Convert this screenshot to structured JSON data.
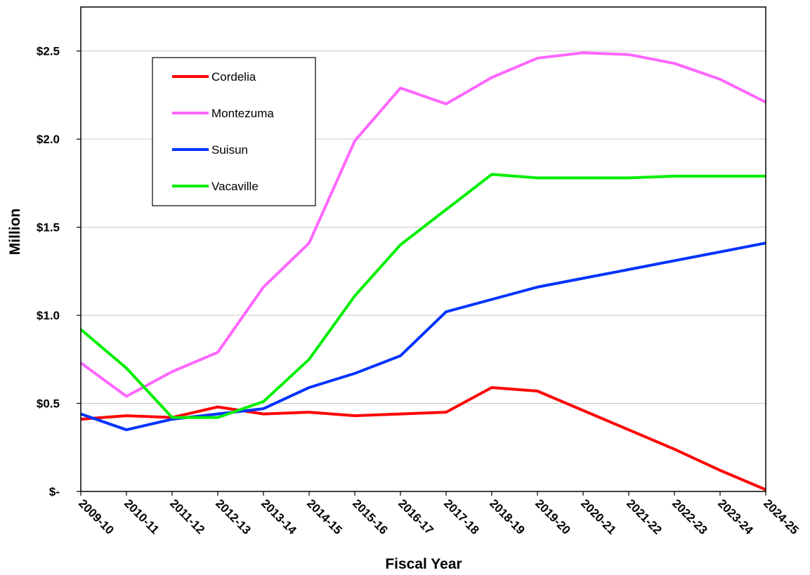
{
  "chart_data": {
    "type": "line",
    "title": "",
    "xlabel": "Fiscal Year",
    "ylabel": "Million",
    "categories": [
      "2009-10",
      "2010-11",
      "2011-12",
      "2012-13",
      "2013-14",
      "2014-15",
      "2015-16",
      "2016-17",
      "2017-18",
      "2018-19",
      "2019-20",
      "2020-21",
      "2021-22",
      "2022-23",
      "2023-24",
      "2024-25"
    ],
    "ylim": [
      0,
      2.5
    ],
    "yticks": [
      {
        "value": 0,
        "label": "$-"
      },
      {
        "value": 0.5,
        "label": "$0.5"
      },
      {
        "value": 1.0,
        "label": "$1.0"
      },
      {
        "value": 1.5,
        "label": "$1.5"
      },
      {
        "value": 2.0,
        "label": "$2.0"
      },
      {
        "value": 2.5,
        "label": "$2.5"
      }
    ],
    "grid": true,
    "legend_position": "top-left",
    "series": [
      {
        "name": "Cordelia",
        "color": "#ff0000",
        "values": [
          0.41,
          0.43,
          0.42,
          0.48,
          0.44,
          0.45,
          0.43,
          0.44,
          0.45,
          0.59,
          0.57,
          0.46,
          0.35,
          0.24,
          0.12,
          0.01
        ]
      },
      {
        "name": "Montezuma",
        "color": "#ff66ff",
        "values": [
          0.73,
          0.54,
          0.68,
          0.79,
          1.16,
          1.41,
          1.99,
          2.29,
          2.2,
          2.35,
          2.46,
          2.49,
          2.48,
          2.43,
          2.34,
          2.21
        ]
      },
      {
        "name": "Suisun",
        "color": "#0033ff",
        "values": [
          0.44,
          0.35,
          0.41,
          0.44,
          0.47,
          0.59,
          0.67,
          0.77,
          1.02,
          1.09,
          1.16,
          1.21,
          1.26,
          1.31,
          1.36,
          1.41
        ]
      },
      {
        "name": "Vacaville",
        "color": "#00ee00",
        "values": [
          0.92,
          0.7,
          0.42,
          0.42,
          0.51,
          0.75,
          1.11,
          1.4,
          1.6,
          1.8,
          1.78,
          1.78,
          1.78,
          1.79,
          1.79,
          1.79
        ]
      }
    ]
  }
}
